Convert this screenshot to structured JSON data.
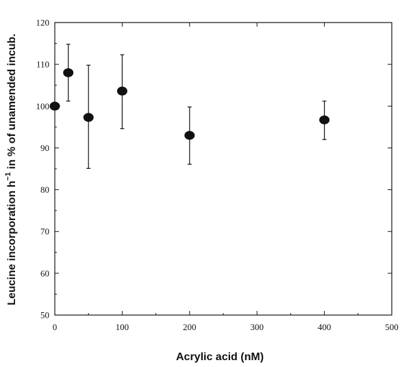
{
  "chart_data": {
    "type": "scatter",
    "title": "",
    "xlabel": "Acrylic acid (nM)",
    "ylabel_prefix": "Leucine incorporation h",
    "ylabel_superscript": "−1",
    "ylabel_suffix": " in % of unamended incub.",
    "xlim": [
      0,
      500
    ],
    "ylim": [
      50,
      120
    ],
    "x_ticks": [
      0,
      100,
      200,
      300,
      400,
      500
    ],
    "y_ticks": [
      50,
      60,
      70,
      80,
      90,
      100,
      110,
      120
    ],
    "x_tick_labels": [
      "0",
      "100",
      "200",
      "300",
      "400",
      "500"
    ],
    "y_tick_labels": [
      "50",
      "60",
      "70",
      "80",
      "90",
      "100",
      "110",
      "120"
    ],
    "grid": false,
    "legend": "none",
    "series": [
      {
        "points": [
          {
            "x": 0,
            "y": 100,
            "err_low": 100,
            "err_high": 100
          },
          {
            "x": 20,
            "y": 108,
            "err_low": 101.2,
            "err_high": 114.8
          },
          {
            "x": 50,
            "y": 97.3,
            "err_low": 85.1,
            "err_high": 109.8
          },
          {
            "x": 100,
            "y": 103.6,
            "err_low": 94.6,
            "err_high": 112.3
          },
          {
            "x": 200,
            "y": 93,
            "err_low": 86.1,
            "err_high": 99.8
          },
          {
            "x": 400,
            "y": 96.7,
            "err_low": 92.0,
            "err_high": 101.2
          }
        ]
      }
    ]
  }
}
